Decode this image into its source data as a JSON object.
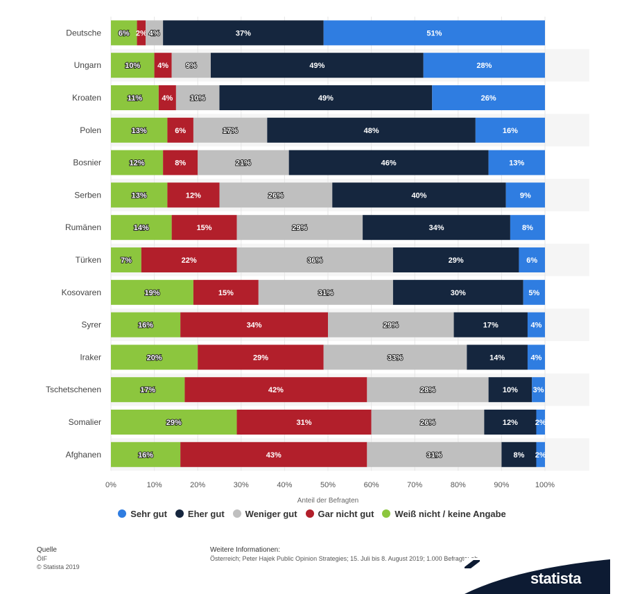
{
  "chart_data": {
    "type": "bar",
    "orientation": "horizontal",
    "stacked": true,
    "categories": [
      "Deutsche",
      "Ungarn",
      "Kroaten",
      "Polen",
      "Bosnier",
      "Serben",
      "Rumänen",
      "Türken",
      "Kosovaren",
      "Syrer",
      "Iraker",
      "Tschetschenen",
      "Somalier",
      "Afghanen"
    ],
    "series": [
      {
        "name": "Weiß nicht / keine Angabe",
        "color": "#8cc63e",
        "values": [
          6,
          10,
          11,
          13,
          12,
          13,
          14,
          7,
          19,
          16,
          20,
          17,
          29,
          16
        ]
      },
      {
        "name": "Gar nicht gut",
        "color": "#b21f2b",
        "values": [
          2,
          4,
          4,
          6,
          8,
          12,
          15,
          22,
          15,
          34,
          29,
          42,
          31,
          43
        ]
      },
      {
        "name": "Weniger gut",
        "color": "#bfbfbf",
        "values": [
          4,
          9,
          10,
          17,
          21,
          26,
          29,
          36,
          31,
          29,
          33,
          28,
          26,
          31
        ]
      },
      {
        "name": "Eher gut",
        "color": "#15263e",
        "values": [
          37,
          49,
          49,
          48,
          46,
          40,
          34,
          29,
          30,
          17,
          14,
          10,
          12,
          8
        ]
      },
      {
        "name": "Sehr gut",
        "color": "#2f7de1",
        "values": [
          51,
          28,
          26,
          16,
          13,
          9,
          8,
          6,
          5,
          4,
          4,
          3,
          2,
          2
        ]
      }
    ],
    "xlim": [
      0,
      100
    ],
    "xticks": [
      "0%",
      "10%",
      "20%",
      "30%",
      "40%",
      "50%",
      "60%",
      "70%",
      "80%",
      "90%",
      "100%"
    ],
    "xlabel": "Anteil der Befragten",
    "legend_order": [
      "Sehr gut",
      "Eher gut",
      "Weniger gut",
      "Gar nicht gut",
      "Weiß nicht / keine Angabe"
    ],
    "legend_position": "bottom",
    "grid": true
  },
  "footer": {
    "source_heading": "Quelle",
    "source_name": "ÖIF",
    "copyright": "© Statista 2019",
    "info_heading": "Weitere Informationen:",
    "info_text": "Österreich; Peter Hajek Public Opinion Strategies; 15. Juli bis 8. August 2019; 1.000 Befragte; ab"
  },
  "brand": {
    "name": "statista"
  }
}
